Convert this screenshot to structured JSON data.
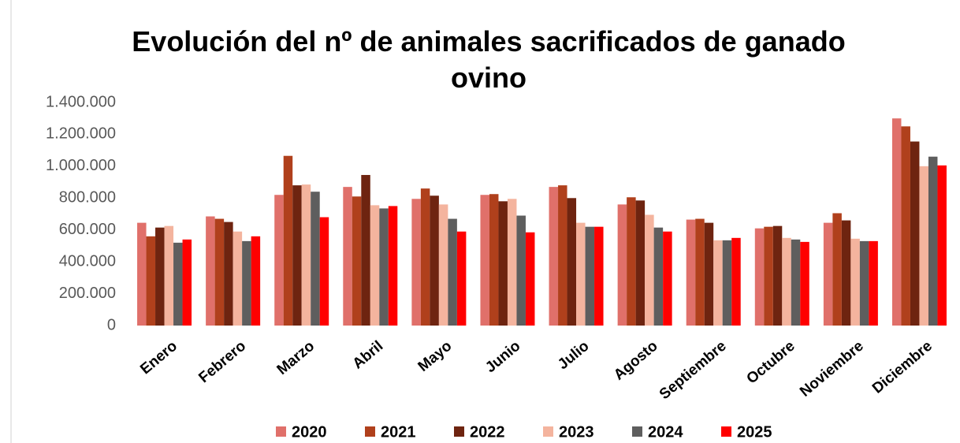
{
  "chart_data": {
    "type": "bar",
    "title": "Evolución del nº de animales sacrificados de ganado ovino",
    "categories": [
      "Enero",
      "Febrero",
      "Marzo",
      "Abril",
      "Mayo",
      "Junio",
      "Julio",
      "Agosto",
      "Septiembre",
      "Octubre",
      "Noviembre",
      "Diciembre"
    ],
    "series": [
      {
        "name": "2020",
        "color": "#e0706a",
        "values": [
          645000,
          685000,
          820000,
          870000,
          795000,
          820000,
          870000,
          760000,
          665000,
          610000,
          645000,
          1300000
        ]
      },
      {
        "name": "2021",
        "color": "#b0401c",
        "values": [
          560000,
          670000,
          1065000,
          810000,
          860000,
          825000,
          880000,
          805000,
          670000,
          620000,
          705000,
          1250000
        ]
      },
      {
        "name": "2022",
        "color": "#6e2410",
        "values": [
          615000,
          650000,
          880000,
          945000,
          815000,
          780000,
          800000,
          785000,
          645000,
          625000,
          660000,
          1155000
        ]
      },
      {
        "name": "2023",
        "color": "#f4b49e",
        "values": [
          625000,
          590000,
          885000,
          755000,
          760000,
          795000,
          645000,
          695000,
          535000,
          550000,
          545000,
          1000000
        ]
      },
      {
        "name": "2024",
        "color": "#5e5e5e",
        "values": [
          520000,
          530000,
          840000,
          735000,
          670000,
          690000,
          620000,
          615000,
          535000,
          540000,
          530000,
          1060000
        ]
      },
      {
        "name": "2025",
        "color": "#ff0000",
        "values": [
          540000,
          560000,
          680000,
          750000,
          590000,
          585000,
          620000,
          590000,
          550000,
          525000,
          530000,
          1005000
        ]
      }
    ],
    "ylim": [
      0,
      1400000
    ],
    "yticks": [
      0,
      {
        "value": 200000,
        "label": "200.000"
      },
      {
        "value": 400000,
        "label": "400.000"
      },
      {
        "value": 600000,
        "label": "600.000"
      },
      {
        "value": 800000,
        "label": "800.000"
      },
      {
        "value": 1000000,
        "label": "1.000.000"
      },
      {
        "value": 1200000,
        "label": "1.200.000"
      },
      {
        "value": 1400000,
        "label": "1.400.000"
      }
    ],
    "grid": false,
    "legend": "bottom"
  }
}
